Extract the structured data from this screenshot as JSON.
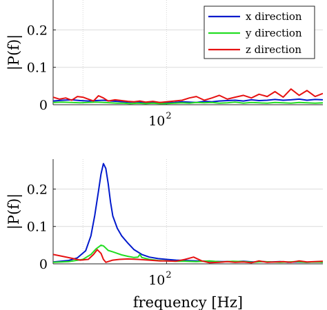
{
  "chart_data": [
    {
      "type": "line",
      "ylabel": "|P(f)|",
      "xlabel": "",
      "xscale": "log",
      "xlim": [
        50,
        260
      ],
      "ylim": [
        0,
        0.28
      ],
      "yticks": [
        0,
        0.1,
        0.2
      ],
      "ytick_labels": [
        "0",
        "0.1",
        "0.2"
      ],
      "xtick_label": "10",
      "xtick_exponent": "2",
      "grid": true,
      "legend": {
        "placement": "top-right",
        "entries": [
          {
            "name": "x direction",
            "color": "#0019cc"
          },
          {
            "name": "y direction",
            "color": "#22dd22"
          },
          {
            "name": "z direction",
            "color": "#e61111"
          }
        ]
      },
      "series": [
        {
          "name": "x direction",
          "color": "#0019cc",
          "x": [
            50,
            53,
            56,
            59,
            62,
            65,
            68,
            71,
            74,
            77,
            80,
            84,
            88,
            92,
            96,
            100,
            105,
            110,
            115,
            120,
            126,
            132,
            138,
            145,
            152,
            160,
            168,
            176,
            185,
            194,
            204,
            214,
            225,
            236,
            248,
            260
          ],
          "y": [
            0.01,
            0.012,
            0.013,
            0.011,
            0.01,
            0.011,
            0.012,
            0.01,
            0.009,
            0.008,
            0.007,
            0.008,
            0.006,
            0.007,
            0.006,
            0.005,
            0.006,
            0.008,
            0.007,
            0.006,
            0.009,
            0.008,
            0.01,
            0.011,
            0.012,
            0.01,
            0.013,
            0.011,
            0.012,
            0.014,
            0.012,
            0.013,
            0.015,
            0.012,
            0.014,
            0.013
          ]
        },
        {
          "name": "y direction",
          "color": "#22dd22",
          "x": [
            50,
            53,
            56,
            59,
            62,
            65,
            68,
            71,
            74,
            77,
            80,
            84,
            88,
            92,
            96,
            100,
            105,
            110,
            115,
            120,
            126,
            132,
            138,
            145,
            152,
            160,
            168,
            176,
            185,
            194,
            204,
            214,
            225,
            236,
            248,
            260
          ],
          "y": [
            0.006,
            0.007,
            0.006,
            0.005,
            0.006,
            0.007,
            0.006,
            0.005,
            0.004,
            0.004,
            0.003,
            0.004,
            0.003,
            0.004,
            0.003,
            0.003,
            0.004,
            0.005,
            0.004,
            0.006,
            0.005,
            0.006,
            0.004,
            0.005,
            0.007,
            0.004,
            0.006,
            0.005,
            0.004,
            0.006,
            0.005,
            0.004,
            0.006,
            0.005,
            0.004,
            0.005
          ]
        },
        {
          "name": "z direction",
          "color": "#e61111",
          "x": [
            50,
            52,
            54,
            56,
            58,
            60,
            62,
            64,
            66,
            68,
            70,
            73,
            76,
            79,
            82,
            85,
            88,
            92,
            96,
            100,
            105,
            110,
            115,
            120,
            126,
            132,
            138,
            145,
            152,
            160,
            168,
            176,
            185,
            194,
            204,
            214,
            225,
            236,
            248,
            260
          ],
          "y": [
            0.02,
            0.015,
            0.018,
            0.012,
            0.022,
            0.02,
            0.015,
            0.01,
            0.024,
            0.018,
            0.01,
            0.013,
            0.011,
            0.009,
            0.008,
            0.01,
            0.007,
            0.009,
            0.006,
            0.008,
            0.01,
            0.012,
            0.018,
            0.022,
            0.012,
            0.018,
            0.025,
            0.015,
            0.02,
            0.025,
            0.018,
            0.028,
            0.022,
            0.035,
            0.02,
            0.042,
            0.025,
            0.038,
            0.022,
            0.03
          ]
        }
      ]
    },
    {
      "type": "line",
      "ylabel": "|P(f)|",
      "xlabel": "frequency [Hz]",
      "xscale": "log",
      "xlim": [
        50,
        260
      ],
      "ylim": [
        0,
        0.28
      ],
      "yticks": [
        0,
        0.1,
        0.2
      ],
      "ytick_labels": [
        "0",
        "0.1",
        "0.2"
      ],
      "xtick_label": "10",
      "xtick_exponent": "2",
      "grid": true,
      "series": [
        {
          "name": "x direction",
          "color": "#0019cc",
          "x": [
            50,
            55,
            58,
            61,
            63,
            64.5,
            66,
            67,
            68,
            69,
            70,
            71,
            72,
            74,
            76,
            79,
            82,
            86,
            90,
            95,
            100,
            106,
            112,
            120,
            130,
            140,
            150,
            160,
            170,
            180,
            190,
            200,
            210,
            220,
            235,
            250,
            260
          ],
          "y": [
            0.005,
            0.009,
            0.016,
            0.035,
            0.075,
            0.13,
            0.195,
            0.24,
            0.268,
            0.255,
            0.215,
            0.165,
            0.128,
            0.095,
            0.075,
            0.055,
            0.038,
            0.025,
            0.018,
            0.014,
            0.012,
            0.01,
            0.009,
            0.008,
            0.007,
            0.006,
            0.006,
            0.007,
            0.005,
            0.006,
            0.005,
            0.006,
            0.004,
            0.005,
            0.004,
            0.005,
            0.004
          ]
        },
        {
          "name": "y direction",
          "color": "#22dd22",
          "x": [
            50,
            55,
            60,
            63,
            65,
            67,
            68,
            69,
            70,
            72,
            74,
            76,
            79,
            82,
            84,
            85,
            86,
            90,
            95,
            100,
            106,
            112,
            120,
            130,
            140,
            150,
            160,
            170,
            180,
            190,
            200,
            210,
            220,
            235,
            250,
            260
          ],
          "y": [
            0.004,
            0.006,
            0.012,
            0.025,
            0.04,
            0.05,
            0.048,
            0.042,
            0.036,
            0.032,
            0.028,
            0.024,
            0.02,
            0.017,
            0.018,
            0.025,
            0.017,
            0.012,
            0.009,
            0.008,
            0.007,
            0.007,
            0.006,
            0.008,
            0.005,
            0.007,
            0.006,
            0.004,
            0.006,
            0.005,
            0.004,
            0.005,
            0.006,
            0.004,
            0.005,
            0.004
          ]
        },
        {
          "name": "z direction",
          "color": "#e61111",
          "x": [
            50,
            53,
            56,
            59,
            62,
            64,
            65.5,
            67,
            68,
            69,
            70,
            72,
            75,
            79,
            84,
            90,
            96,
            100,
            106,
            112,
            118,
            124,
            130,
            138,
            145,
            152,
            160,
            168,
            176,
            185,
            194,
            204,
            214,
            225,
            236,
            248,
            260
          ],
          "y": [
            0.025,
            0.02,
            0.015,
            0.01,
            0.012,
            0.025,
            0.038,
            0.028,
            0.012,
            0.004,
            0.006,
            0.01,
            0.012,
            0.013,
            0.012,
            0.01,
            0.008,
            0.008,
            0.007,
            0.012,
            0.018,
            0.008,
            0.003,
            0.004,
            0.006,
            0.004,
            0.005,
            0.003,
            0.008,
            0.004,
            0.005,
            0.006,
            0.004,
            0.008,
            0.005,
            0.006,
            0.007
          ]
        }
      ]
    }
  ]
}
